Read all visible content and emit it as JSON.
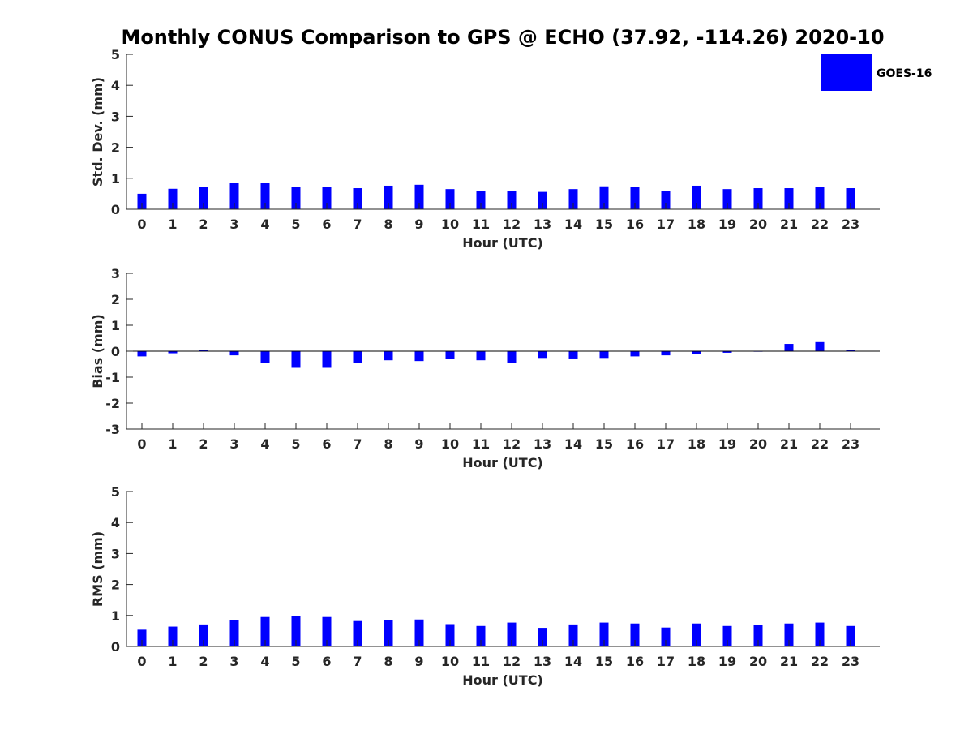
{
  "title": "Monthly CONUS Comparison to GPS @ ECHO (37.92, -114.26) 2020-10",
  "colors": {
    "bar": "#0000ff",
    "axis": "#262626",
    "zero_line": "#000000"
  },
  "legend": {
    "label": "GOES-16",
    "placement": "top-right"
  },
  "chart_data": [
    {
      "type": "bar",
      "xlabel": "Hour (UTC)",
      "ylabel": "Std. Dev. (mm)",
      "ylim": [
        0,
        5
      ],
      "yticks": [
        0,
        1,
        2,
        3,
        4,
        5
      ],
      "categories": [
        "0",
        "1",
        "2",
        "3",
        "4",
        "5",
        "6",
        "7",
        "8",
        "9",
        "10",
        "11",
        "12",
        "13",
        "14",
        "15",
        "16",
        "17",
        "18",
        "19",
        "20",
        "21",
        "22",
        "23"
      ],
      "series": [
        {
          "name": "GOES-16",
          "values": [
            0.5,
            0.66,
            0.71,
            0.84,
            0.84,
            0.73,
            0.71,
            0.68,
            0.76,
            0.79,
            0.65,
            0.58,
            0.6,
            0.56,
            0.65,
            0.74,
            0.71,
            0.6,
            0.76,
            0.65,
            0.68,
            0.68,
            0.71,
            0.68
          ]
        }
      ],
      "grid": false
    },
    {
      "type": "bar",
      "xlabel": "Hour (UTC)",
      "ylabel": "Bias (mm)",
      "ylim": [
        -3,
        3
      ],
      "yticks": [
        -3,
        -2,
        -1,
        0,
        1,
        2,
        3
      ],
      "categories": [
        "0",
        "1",
        "2",
        "3",
        "4",
        "5",
        "6",
        "7",
        "8",
        "9",
        "10",
        "11",
        "12",
        "13",
        "14",
        "15",
        "16",
        "17",
        "18",
        "19",
        "20",
        "21",
        "22",
        "23"
      ],
      "series": [
        {
          "name": "GOES-16",
          "values": [
            -0.2,
            -0.08,
            0.06,
            -0.16,
            -0.45,
            -0.64,
            -0.64,
            -0.45,
            -0.35,
            -0.38,
            -0.31,
            -0.35,
            -0.45,
            -0.26,
            -0.28,
            -0.26,
            -0.2,
            -0.16,
            -0.1,
            -0.06,
            -0.02,
            0.28,
            0.35,
            0.06
          ]
        }
      ],
      "grid": false
    },
    {
      "type": "bar",
      "xlabel": "Hour (UTC)",
      "ylabel": "RMS (mm)",
      "ylim": [
        0,
        5
      ],
      "yticks": [
        0,
        1,
        2,
        3,
        4,
        5
      ],
      "categories": [
        "0",
        "1",
        "2",
        "3",
        "4",
        "5",
        "6",
        "7",
        "8",
        "9",
        "10",
        "11",
        "12",
        "13",
        "14",
        "15",
        "16",
        "17",
        "18",
        "19",
        "20",
        "21",
        "22",
        "23"
      ],
      "series": [
        {
          "name": "GOES-16",
          "values": [
            0.54,
            0.64,
            0.71,
            0.85,
            0.95,
            0.97,
            0.95,
            0.82,
            0.85,
            0.87,
            0.72,
            0.66,
            0.77,
            0.6,
            0.71,
            0.77,
            0.74,
            0.61,
            0.74,
            0.66,
            0.69,
            0.74,
            0.77,
            0.66
          ]
        }
      ],
      "grid": false
    }
  ]
}
